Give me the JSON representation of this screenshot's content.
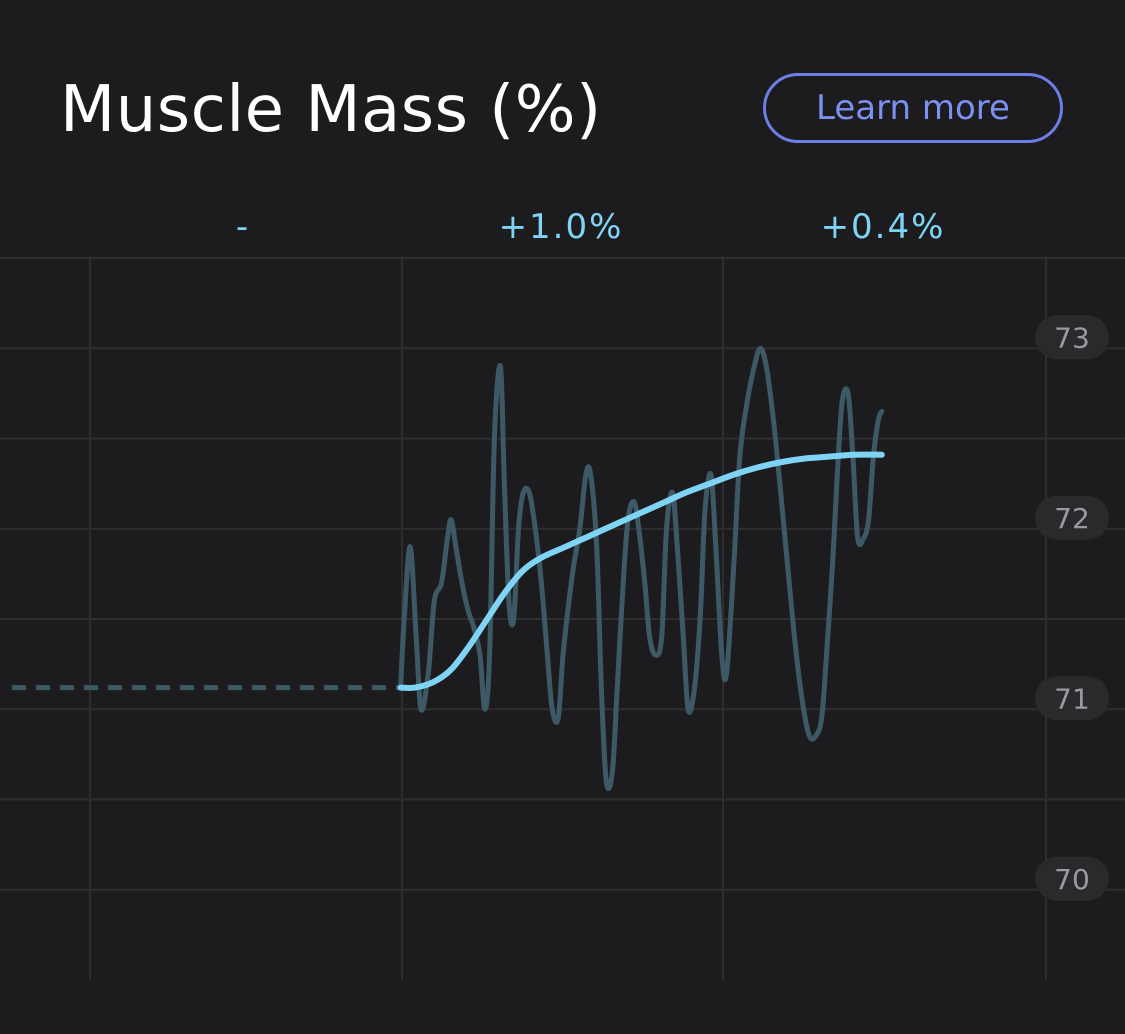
{
  "header": {
    "title": "Muscle Mass (%)",
    "learn_more_label": "Learn more"
  },
  "colors": {
    "background": "#1c1c1e",
    "grid": "#2e2e31",
    "raw_line": "#3e5966",
    "trend_line": "#7fd4f5",
    "dashed_line": "#3e5966",
    "period_label": "#7fd4f5",
    "y_label_text": "#9a9a9e",
    "y_label_bg": "#2a2a2c",
    "button_border": "#6b7fe6",
    "button_text": "#7d8ff0"
  },
  "chart_data": {
    "type": "line",
    "title": "Muscle Mass (%)",
    "period_changes": [
      "-",
      "+1.0%",
      "+0.4%"
    ],
    "y_ticks": [
      70,
      71,
      72,
      73
    ],
    "ylim": [
      69.5,
      73.5
    ],
    "xlim": [
      0,
      100
    ],
    "grid": true,
    "baseline": {
      "x_start": 0,
      "x_end": 33.3,
      "y": 71.12,
      "style": "dashed"
    },
    "series": [
      {
        "style": "raw",
        "points": [
          [
            33.3,
            71.12
          ],
          [
            33.6,
            71.5
          ],
          [
            34.1,
            71.9
          ],
          [
            34.6,
            71.4
          ],
          [
            35.0,
            71.0
          ],
          [
            35.6,
            71.2
          ],
          [
            36.1,
            71.6
          ],
          [
            36.7,
            71.7
          ],
          [
            37.2,
            71.95
          ],
          [
            37.5,
            72.05
          ],
          [
            37.9,
            71.9
          ],
          [
            38.4,
            71.7
          ],
          [
            38.9,
            71.55
          ],
          [
            39.4,
            71.45
          ],
          [
            39.9,
            71.3
          ],
          [
            40.3,
            71.0
          ],
          [
            40.7,
            71.3
          ],
          [
            41.1,
            72.5
          ],
          [
            41.6,
            72.9
          ],
          [
            41.9,
            72.3
          ],
          [
            42.3,
            71.6
          ],
          [
            42.7,
            71.5
          ],
          [
            43.1,
            72.0
          ],
          [
            43.5,
            72.2
          ],
          [
            44.0,
            72.2
          ],
          [
            44.5,
            72.0
          ],
          [
            45.0,
            71.7
          ],
          [
            45.5,
            71.3
          ],
          [
            45.9,
            71.0
          ],
          [
            46.4,
            70.95
          ],
          [
            46.8,
            71.3
          ],
          [
            47.3,
            71.6
          ],
          [
            47.7,
            71.8
          ],
          [
            48.2,
            72.0
          ],
          [
            48.7,
            72.3
          ],
          [
            49.1,
            72.3
          ],
          [
            49.6,
            71.9
          ],
          [
            50.0,
            71.1
          ],
          [
            50.4,
            70.6
          ],
          [
            50.9,
            70.65
          ],
          [
            51.3,
            71.1
          ],
          [
            51.8,
            71.7
          ],
          [
            52.2,
            72.05
          ],
          [
            52.7,
            72.15
          ],
          [
            53.1,
            72.0
          ],
          [
            53.6,
            71.7
          ],
          [
            54.0,
            71.4
          ],
          [
            54.5,
            71.3
          ],
          [
            55.0,
            71.4
          ],
          [
            55.4,
            72.0
          ],
          [
            55.9,
            72.2
          ],
          [
            56.3,
            71.9
          ],
          [
            56.8,
            71.4
          ],
          [
            57.2,
            71.0
          ],
          [
            57.7,
            71.1
          ],
          [
            58.2,
            71.5
          ],
          [
            58.6,
            72.1
          ],
          [
            59.1,
            72.3
          ],
          [
            59.5,
            71.9
          ],
          [
            60.0,
            71.3
          ],
          [
            60.4,
            71.2
          ],
          [
            61.0,
            71.8
          ],
          [
            61.5,
            72.4
          ],
          [
            62.1,
            72.7
          ],
          [
            62.7,
            72.9
          ],
          [
            63.2,
            73.0
          ],
          [
            63.7,
            72.9
          ],
          [
            64.3,
            72.6
          ],
          [
            64.9,
            72.2
          ],
          [
            65.6,
            71.7
          ],
          [
            66.2,
            71.3
          ],
          [
            66.8,
            71.0
          ],
          [
            67.3,
            70.85
          ],
          [
            67.8,
            70.85
          ],
          [
            68.3,
            70.95
          ],
          [
            68.7,
            71.3
          ],
          [
            69.2,
            71.8
          ],
          [
            69.6,
            72.3
          ],
          [
            70.0,
            72.7
          ],
          [
            70.5,
            72.75
          ],
          [
            70.9,
            72.4
          ],
          [
            71.3,
            71.95
          ],
          [
            71.8,
            71.95
          ],
          [
            72.2,
            72.05
          ],
          [
            72.6,
            72.4
          ],
          [
            73.0,
            72.6
          ],
          [
            73.3,
            72.65
          ]
        ]
      },
      {
        "style": "trend",
        "points": [
          [
            33.3,
            71.12
          ],
          [
            34.5,
            71.12
          ],
          [
            36.0,
            71.15
          ],
          [
            37.5,
            71.22
          ],
          [
            39.0,
            71.35
          ],
          [
            40.5,
            71.5
          ],
          [
            42.0,
            71.65
          ],
          [
            43.5,
            71.77
          ],
          [
            45.0,
            71.84
          ],
          [
            47.0,
            71.9
          ],
          [
            49.0,
            71.96
          ],
          [
            51.0,
            72.02
          ],
          [
            53.0,
            72.08
          ],
          [
            55.0,
            72.14
          ],
          [
            57.0,
            72.2
          ],
          [
            59.0,
            72.25
          ],
          [
            61.0,
            72.3
          ],
          [
            63.0,
            72.34
          ],
          [
            65.0,
            72.37
          ],
          [
            67.0,
            72.39
          ],
          [
            69.0,
            72.4
          ],
          [
            71.0,
            72.41
          ],
          [
            73.3,
            72.41
          ]
        ]
      }
    ]
  }
}
